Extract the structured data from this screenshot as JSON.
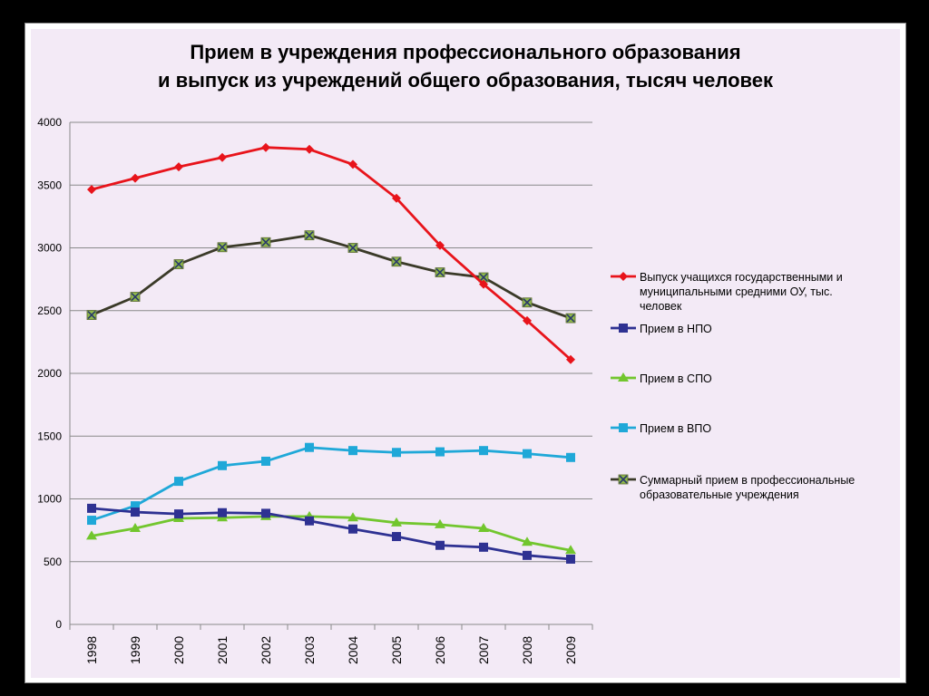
{
  "title_lines": [
    "Прием в учреждения профессионального образования",
    "и выпуск из учреждений общего образования, тысяч человек"
  ],
  "colors": {
    "grad": "#e8141b",
    "npo": "#2e3192",
    "spo": "#72c62e",
    "vpo": "#1fa8d8",
    "total_line": "#3a3a28",
    "total_marker": "#8fb84a"
  },
  "chart_data": {
    "type": "line",
    "title": "Прием в учреждения профессионального образования и выпуск из учреждений общего образования, тысяч человек",
    "categories": [
      "1998",
      "1999",
      "2000",
      "2001",
      "2002",
      "2003",
      "2004",
      "2005",
      "2006",
      "2007",
      "2008",
      "2009"
    ],
    "ylim": [
      0,
      4000
    ],
    "yticks": [
      "0",
      "500",
      "1000",
      "1500",
      "2000",
      "2500",
      "3000",
      "3500",
      "4000"
    ],
    "grid": true,
    "legend_position": "right",
    "series": [
      {
        "key": "grad",
        "name_lines": [
          "Выпуск учащихся государственными и",
          "муниципальными средними ОУ,  тыс.",
          "человек"
        ],
        "marker": "diamond",
        "values": [
          3465,
          3555,
          3645,
          3720,
          3800,
          3785,
          3665,
          3395,
          3020,
          2710,
          2420,
          2110
        ]
      },
      {
        "key": "npo",
        "name_lines": [
          "Прием в НПО"
        ],
        "marker": "square",
        "values": [
          925,
          895,
          880,
          890,
          885,
          825,
          760,
          700,
          630,
          615,
          550,
          520
        ]
      },
      {
        "key": "spo",
        "name_lines": [
          "Прием в СПО"
        ],
        "marker": "triangle",
        "values": [
          705,
          765,
          845,
          850,
          860,
          860,
          850,
          810,
          795,
          765,
          655,
          590
        ]
      },
      {
        "key": "vpo",
        "name_lines": [
          "Прием в ВПО"
        ],
        "marker": "square",
        "values": [
          830,
          945,
          1140,
          1265,
          1300,
          1410,
          1385,
          1370,
          1375,
          1385,
          1360,
          1330
        ]
      },
      {
        "key": "total",
        "name_lines": [
          "Суммарный прием в профессиональные",
          "образовательные учреждения"
        ],
        "marker": "x-square",
        "values": [
          2465,
          2610,
          2870,
          3005,
          3045,
          3100,
          3000,
          2890,
          2805,
          2765,
          2565,
          2440
        ]
      }
    ]
  }
}
